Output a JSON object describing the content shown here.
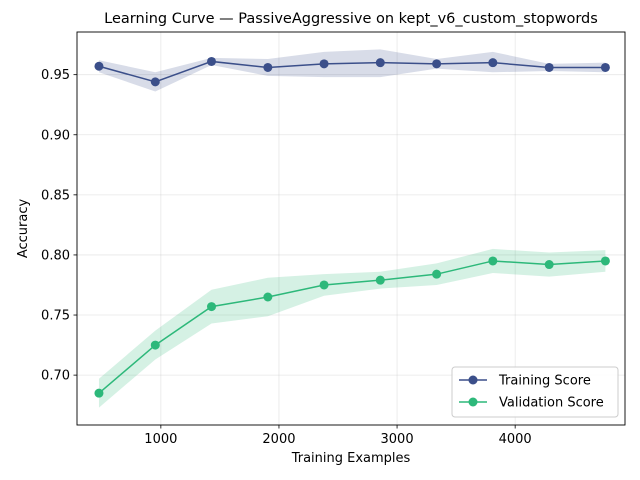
{
  "chart_data": {
    "type": "line",
    "title": "Learning Curve — PassiveAggressive on kept_v6_custom_stopwords",
    "xlabel": "Training Examples",
    "ylabel": "Accuracy",
    "xlim": [
      290,
      4930
    ],
    "ylim": [
      0.6585,
      0.9855
    ],
    "xticks": [
      1000,
      2000,
      3000,
      4000
    ],
    "yticks": [
      0.7,
      0.75,
      0.8,
      0.85,
      0.9,
      0.95
    ],
    "xtick_labels": [
      "1000",
      "2000",
      "3000",
      "4000"
    ],
    "ytick_labels": [
      "0.70",
      "0.75",
      "0.80",
      "0.85",
      "0.90",
      "0.95"
    ],
    "grid": true,
    "legend_position": "lower-right",
    "x": [
      476,
      953,
      1429,
      1906,
      2382,
      2858,
      3335,
      3811,
      4288,
      4764
    ],
    "series": [
      {
        "name": "Training Score",
        "color": "#3b4f8a",
        "values": [
          0.957,
          0.944,
          0.961,
          0.956,
          0.959,
          0.96,
          0.959,
          0.96,
          0.956,
          0.956
        ],
        "lower": [
          0.952,
          0.936,
          0.958,
          0.949,
          0.948,
          0.948,
          0.955,
          0.952,
          0.953,
          0.952
        ],
        "upper": [
          0.962,
          0.952,
          0.964,
          0.963,
          0.969,
          0.971,
          0.963,
          0.969,
          0.959,
          0.96
        ]
      },
      {
        "name": "Validation Score",
        "color": "#2db87a",
        "values": [
          0.685,
          0.725,
          0.757,
          0.765,
          0.775,
          0.779,
          0.784,
          0.795,
          0.792,
          0.795
        ],
        "lower": [
          0.673,
          0.713,
          0.743,
          0.749,
          0.766,
          0.772,
          0.775,
          0.785,
          0.782,
          0.786
        ],
        "upper": [
          0.697,
          0.737,
          0.771,
          0.781,
          0.784,
          0.786,
          0.793,
          0.805,
          0.802,
          0.804
        ]
      }
    ]
  }
}
